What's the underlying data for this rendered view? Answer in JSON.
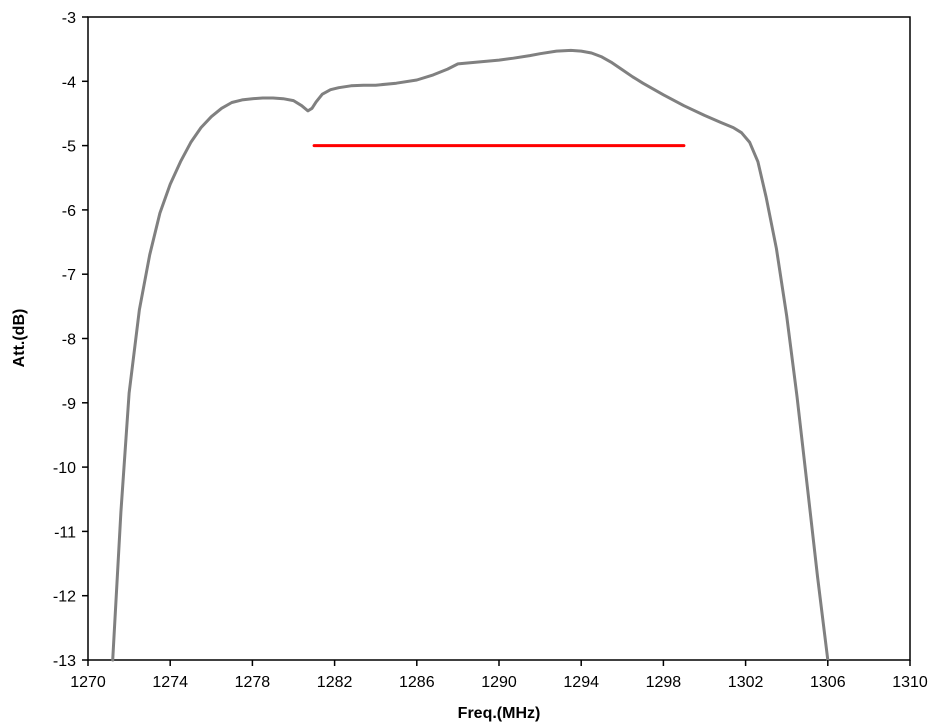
{
  "chart_data": {
    "type": "line",
    "title": "",
    "xlabel": "Freq.(MHz)",
    "ylabel": "Att.(dB)",
    "xlim": [
      1270,
      1310
    ],
    "ylim": [
      -13,
      -3
    ],
    "xticks": [
      1270,
      1274,
      1278,
      1282,
      1286,
      1290,
      1294,
      1298,
      1302,
      1306,
      1310
    ],
    "yticks": [
      -3,
      -4,
      -5,
      -6,
      -7,
      -8,
      -9,
      -10,
      -11,
      -12,
      -13
    ],
    "grid": false,
    "legend": "none",
    "series": [
      {
        "color": "#808080",
        "x": [
          1271.2,
          1271.6,
          1272.0,
          1272.5,
          1273.0,
          1273.5,
          1274.0,
          1274.5,
          1275.0,
          1275.5,
          1276.0,
          1276.5,
          1277.0,
          1277.5,
          1278.0,
          1278.5,
          1279.0,
          1279.5,
          1280.0,
          1280.4,
          1280.7,
          1280.9,
          1281.1,
          1281.4,
          1281.8,
          1282.2,
          1282.8,
          1283.4,
          1284.0,
          1285.0,
          1286.0,
          1286.8,
          1287.5,
          1288.0,
          1289.0,
          1290.0,
          1290.7,
          1291.5,
          1292.0,
          1292.8,
          1293.5,
          1294.0,
          1294.5,
          1295.0,
          1295.5,
          1296.0,
          1296.5,
          1297.0,
          1298.0,
          1299.0,
          1300.0,
          1300.8,
          1301.4,
          1301.8,
          1302.2,
          1302.6,
          1303.0,
          1303.5,
          1304.0,
          1304.5,
          1305.0,
          1305.5,
          1306.0
        ],
        "y": [
          -13,
          -10.7,
          -8.85,
          -7.55,
          -6.7,
          -6.05,
          -5.6,
          -5.25,
          -4.95,
          -4.72,
          -4.55,
          -4.42,
          -4.33,
          -4.29,
          -4.27,
          -4.26,
          -4.26,
          -4.27,
          -4.3,
          -4.38,
          -4.46,
          -4.42,
          -4.32,
          -4.2,
          -4.13,
          -4.1,
          -4.07,
          -4.06,
          -4.06,
          -4.03,
          -3.98,
          -3.9,
          -3.81,
          -3.73,
          -3.7,
          -3.67,
          -3.64,
          -3.6,
          -3.57,
          -3.53,
          -3.52,
          -3.53,
          -3.56,
          -3.62,
          -3.71,
          -3.82,
          -3.93,
          -4.03,
          -4.21,
          -4.38,
          -4.53,
          -4.64,
          -4.72,
          -4.8,
          -4.95,
          -5.25,
          -5.8,
          -6.6,
          -7.65,
          -8.9,
          -10.3,
          -11.7,
          -13
        ]
      },
      {
        "color": "#ff0000",
        "x": [
          1281,
          1299
        ],
        "y": [
          -5,
          -5
        ]
      }
    ]
  }
}
